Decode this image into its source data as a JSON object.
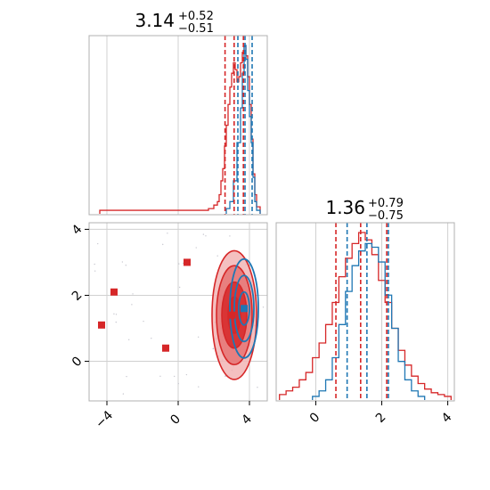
{
  "colors": {
    "red": "#d62728",
    "blue": "#1f77b4",
    "red_fill_light": "#f2b5b5",
    "red_fill_mid": "#e57373",
    "red_fill_dark": "#d62728",
    "scatter": "#c8c8d0"
  },
  "chart_data": [
    {
      "type": "histogram",
      "panel": "marginal-x",
      "title_value": "3.14",
      "title_upper": "+0.52",
      "title_lower": "−0.51",
      "xlim": [
        -5,
        5
      ],
      "grid": true,
      "quantiles": {
        "red": [
          2.63,
          3.14,
          3.66
        ],
        "blue": [
          3.35,
          3.75,
          4.15
        ]
      },
      "series": [
        {
          "color": "red",
          "x": [
            -4.2,
            -3.8,
            -0.2,
            0.5,
            1.0,
            1.5,
            1.8,
            2.0,
            2.1,
            2.2,
            2.3,
            2.4,
            2.5,
            2.6,
            2.7,
            2.8,
            2.9,
            3.0,
            3.1,
            3.2,
            3.3,
            3.4,
            3.5,
            3.6,
            3.7,
            3.8,
            3.9,
            4.0,
            4.1,
            4.2,
            4.4
          ],
          "y": [
            1,
            1,
            1,
            1,
            1,
            1,
            2,
            4,
            6,
            10,
            18,
            25,
            38,
            50,
            62,
            72,
            80,
            86,
            82,
            75,
            78,
            86,
            92,
            96,
            90,
            78,
            62,
            42,
            22,
            10,
            3
          ]
        },
        {
          "color": "blue",
          "x": [
            2.8,
            3.0,
            3.2,
            3.4,
            3.5,
            3.6,
            3.7,
            3.8,
            3.9,
            4.0,
            4.1,
            4.2,
            4.3,
            4.5
          ],
          "y": [
            2,
            6,
            18,
            40,
            60,
            80,
            96,
            88,
            70,
            55,
            40,
            20,
            6,
            1
          ]
        }
      ]
    },
    {
      "type": "histogram",
      "panel": "marginal-y",
      "title_value": "1.36",
      "title_upper": "+0.79",
      "title_lower": "−0.75",
      "xlim": [
        -1.2,
        4.2
      ],
      "xticks": [
        0,
        2,
        4
      ],
      "xtick_labels": [
        "0",
        "2",
        "4"
      ],
      "grid": true,
      "quantiles": {
        "red": [
          0.61,
          1.36,
          2.15
        ],
        "blue": [
          0.95,
          1.55,
          2.2
        ]
      },
      "series": [
        {
          "color": "red",
          "x": [
            -1.0,
            -0.8,
            -0.6,
            -0.4,
            -0.2,
            0.0,
            0.2,
            0.4,
            0.6,
            0.8,
            1.0,
            1.2,
            1.4,
            1.6,
            1.8,
            2.0,
            2.2,
            2.4,
            2.6,
            2.8,
            3.0,
            3.2,
            3.4,
            3.6,
            3.8,
            4.0
          ],
          "y": [
            2,
            4,
            6,
            10,
            14,
            22,
            30,
            40,
            52,
            66,
            76,
            84,
            90,
            86,
            78,
            64,
            52,
            38,
            26,
            18,
            12,
            8,
            5,
            3,
            2,
            1
          ]
        },
        {
          "color": "blue",
          "x": [
            0.0,
            0.2,
            0.4,
            0.6,
            0.8,
            1.0,
            1.2,
            1.4,
            1.6,
            1.8,
            2.0,
            2.2,
            2.4,
            2.6,
            2.8,
            3.0,
            3.2
          ],
          "y": [
            1,
            4,
            10,
            22,
            40,
            58,
            72,
            80,
            84,
            82,
            74,
            56,
            38,
            20,
            10,
            4,
            1
          ]
        }
      ]
    },
    {
      "type": "scatter",
      "panel": "joint",
      "xlim": [
        -5,
        5
      ],
      "ylim": [
        -1.2,
        4.2
      ],
      "xticks": [
        -4,
        0,
        4
      ],
      "xtick_labels": [
        "−4",
        "0",
        "4"
      ],
      "yticks": [
        0,
        2,
        4
      ],
      "ytick_labels": [
        "0",
        "2",
        "4"
      ],
      "grid": true,
      "contours": {
        "red": {
          "center": [
            3.15,
            1.4
          ],
          "radii_x": [
            0.35,
            0.7,
            1.0,
            1.25
          ],
          "radii_y": [
            0.55,
            1.0,
            1.5,
            1.95
          ]
        },
        "blue": {
          "center": [
            3.7,
            1.6
          ],
          "radii_x": [
            0.3,
            0.55,
            0.8
          ],
          "radii_y": [
            0.5,
            1.0,
            1.5
          ]
        }
      },
      "markers": [
        {
          "color": "red",
          "x": -4.3,
          "y": 1.1
        },
        {
          "color": "red",
          "x": -3.6,
          "y": 2.1
        },
        {
          "color": "red",
          "x": -0.7,
          "y": 0.4
        },
        {
          "color": "red",
          "x": 0.5,
          "y": 3.0
        },
        {
          "color": "red",
          "x": 3.0,
          "y": 1.4
        },
        {
          "color": "blue",
          "x": 3.7,
          "y": 1.6
        }
      ]
    }
  ]
}
